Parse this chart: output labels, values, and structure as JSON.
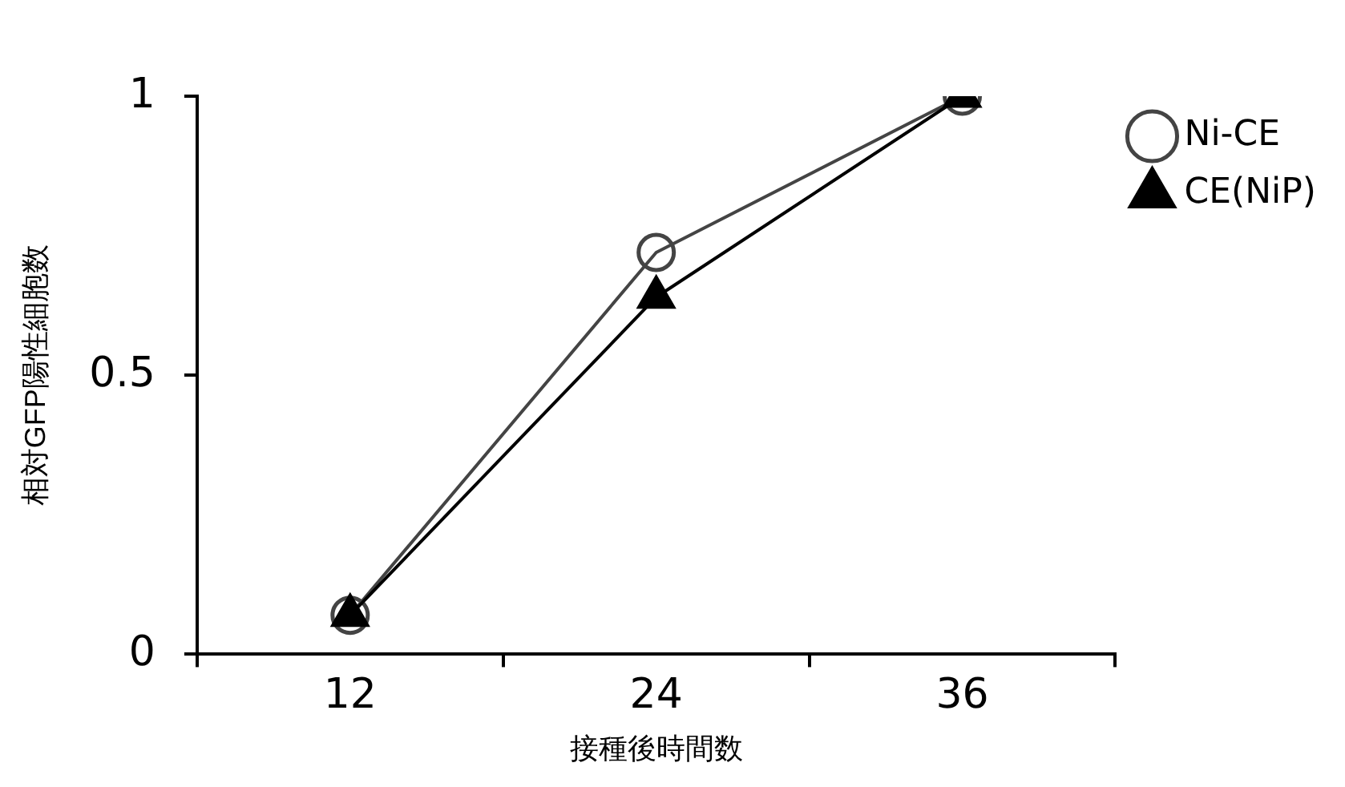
{
  "chart_data": {
    "type": "line",
    "xlabel": "接種後時間数",
    "ylabel": "相対GFP陽性細胞数",
    "categories": [
      "12",
      "24",
      "36"
    ],
    "series": [
      {
        "name": "Ni-CE",
        "color": "#444444",
        "marker": "circle",
        "values": [
          0.07,
          0.72,
          1.0
        ]
      },
      {
        "name": "CE(NiP)",
        "color": "#000000",
        "marker": "triangle",
        "values": [
          0.07,
          0.64,
          1.0
        ]
      }
    ],
    "ylim": [
      0,
      1
    ],
    "yticks": [
      0,
      0.5,
      1
    ],
    "grid": false,
    "legend": "top right"
  }
}
